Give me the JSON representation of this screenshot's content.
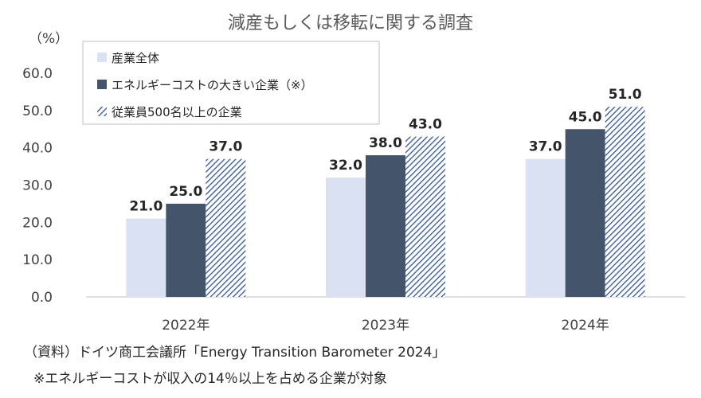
{
  "chart_data": {
    "type": "bar",
    "title": "減産もしくは移転に関する調査",
    "ylabel": "（%）",
    "ylim": [
      0,
      60
    ],
    "yticks": [
      "0.0",
      "10.0",
      "20.0",
      "30.0",
      "40.0",
      "50.0",
      "60.0"
    ],
    "categories": [
      "2022年",
      "2023年",
      "2024年"
    ],
    "series": [
      {
        "name": "産業全体",
        "values": [
          21.0,
          32.0,
          37.0
        ],
        "labels": [
          "21.0",
          "32.0",
          "37.0"
        ],
        "color": "#d9e1f2",
        "pattern": "solid"
      },
      {
        "name": "エネルギーコストの大きい企業（※）",
        "values": [
          25.0,
          38.0,
          45.0
        ],
        "labels": [
          "25.0",
          "38.0",
          "45.0"
        ],
        "color": "#44546a",
        "pattern": "solid"
      },
      {
        "name": "従業員500名以上の企業",
        "values": [
          37.0,
          43.0,
          51.0
        ],
        "labels": [
          "37.0",
          "43.0",
          "51.0"
        ],
        "color": "#2f5597",
        "pattern": "hatch"
      }
    ],
    "legend_position": "top-left"
  },
  "notes": {
    "source": "（資料）ドイツ商工会議所「Energy Transition Barometer 2024」",
    "asterisk": "※エネルギーコストが収入の14％以上を占める企業が対象"
  }
}
